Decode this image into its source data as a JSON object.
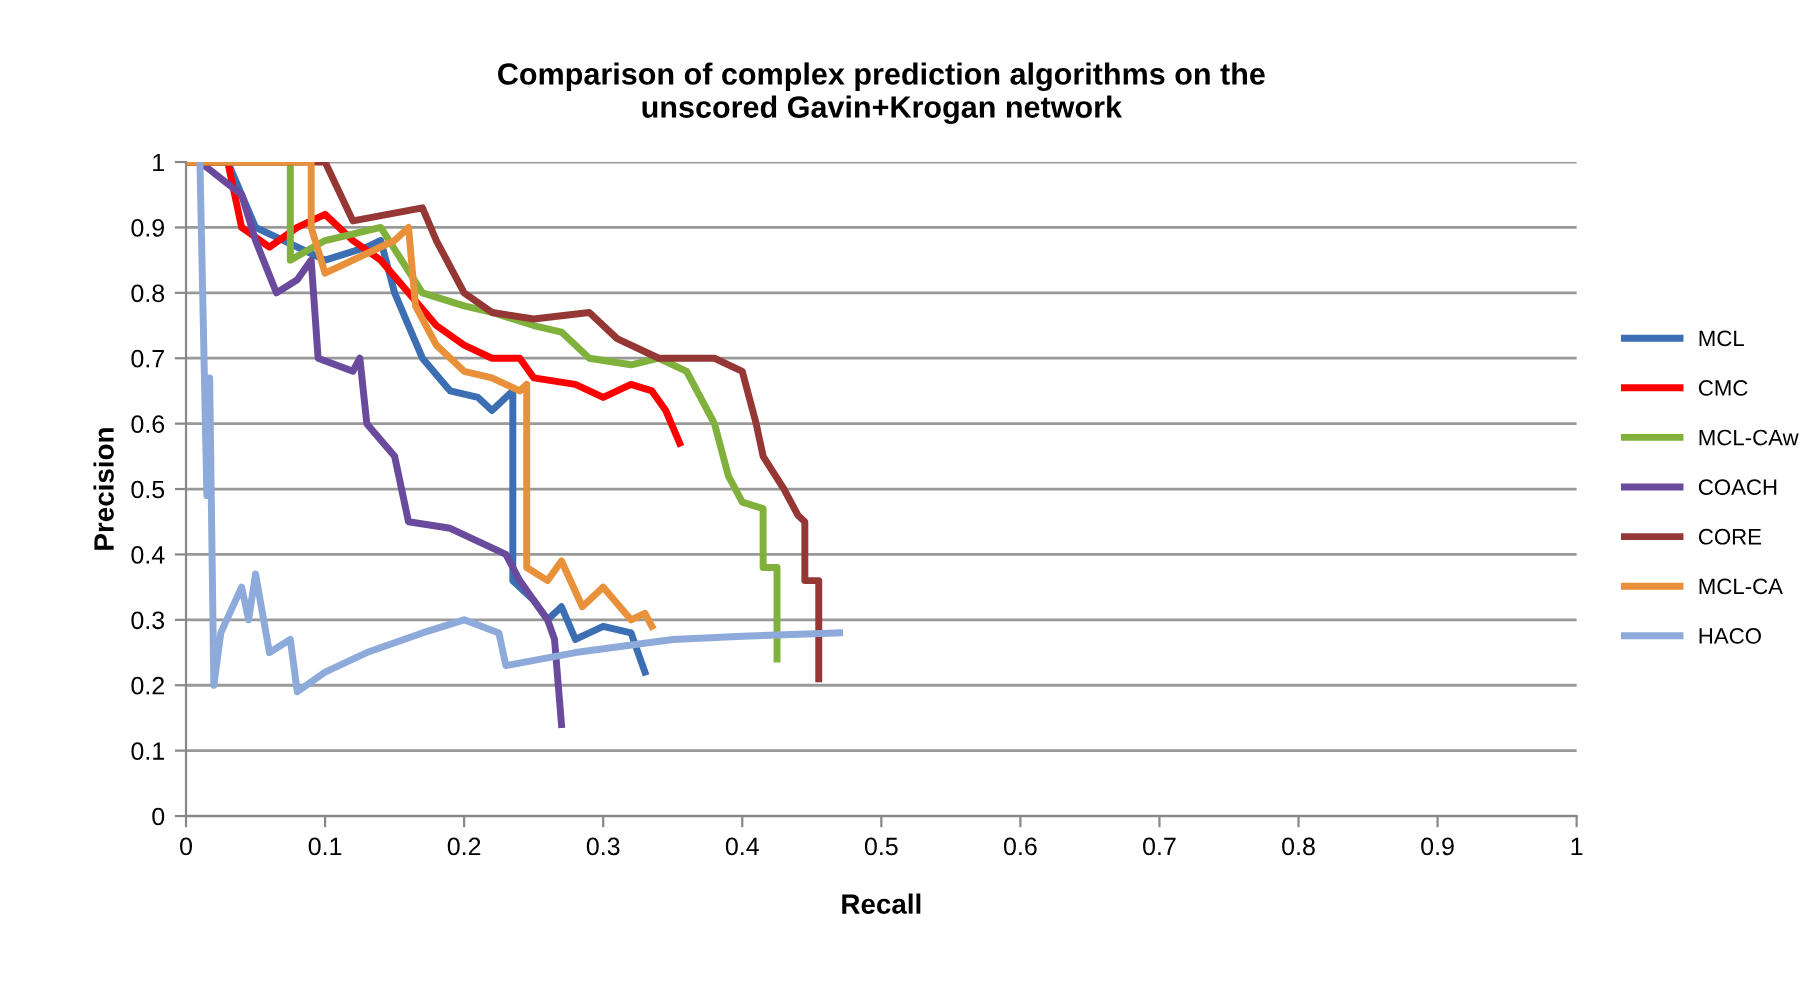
{
  "chart_data": {
    "type": "line",
    "title": "Comparison of complex prediction algorithms on the\nunscored Gavin+Krogan network",
    "xlabel": "Recall",
    "ylabel": "Precision",
    "xlim": [
      0,
      1
    ],
    "ylim": [
      0,
      1
    ],
    "xticks": [
      0,
      0.1,
      0.2,
      0.3,
      0.4,
      0.5,
      0.6,
      0.7,
      0.8,
      0.9,
      1
    ],
    "yticks": [
      0,
      0.1,
      0.2,
      0.3,
      0.4,
      0.5,
      0.6,
      0.7,
      0.8,
      0.9,
      1
    ],
    "grid": "y",
    "legend": "right",
    "marker": "none",
    "line_style": "solid",
    "series": [
      {
        "name": "MCL",
        "color": "#3c6eb4",
        "x": [
          0.03,
          0.05,
          0.1,
          0.13,
          0.14,
          0.15,
          0.16,
          0.17,
          0.19,
          0.21,
          0.22,
          0.235,
          0.235,
          0.25,
          0.26,
          0.27,
          0.28,
          0.3,
          0.32,
          0.325,
          0.33
        ],
        "values": [
          1.0,
          0.9,
          0.85,
          0.87,
          0.88,
          0.8,
          0.75,
          0.7,
          0.65,
          0.64,
          0.62,
          0.65,
          0.36,
          0.33,
          0.3,
          0.32,
          0.27,
          0.29,
          0.28,
          0.25,
          0.22
        ]
      },
      {
        "name": "CMC",
        "color": "#ff0000",
        "x": [
          0.0,
          0.03,
          0.04,
          0.06,
          0.08,
          0.1,
          0.12,
          0.14,
          0.16,
          0.18,
          0.2,
          0.22,
          0.24,
          0.25,
          0.28,
          0.3,
          0.32,
          0.335,
          0.345,
          0.355
        ],
        "values": [
          1.0,
          1.0,
          0.9,
          0.87,
          0.9,
          0.92,
          0.88,
          0.85,
          0.8,
          0.75,
          0.72,
          0.7,
          0.7,
          0.67,
          0.66,
          0.64,
          0.66,
          0.65,
          0.62,
          0.57
        ]
      },
      {
        "name": "MCL-CAw",
        "color": "#7fb13c",
        "x": [
          0.0,
          0.075,
          0.075,
          0.1,
          0.14,
          0.155,
          0.17,
          0.2,
          0.22,
          0.25,
          0.27,
          0.29,
          0.32,
          0.34,
          0.36,
          0.38,
          0.39,
          0.4,
          0.415,
          0.415,
          0.425,
          0.425
        ],
        "values": [
          1.0,
          1.0,
          0.85,
          0.88,
          0.9,
          0.85,
          0.8,
          0.78,
          0.77,
          0.75,
          0.74,
          0.7,
          0.69,
          0.7,
          0.68,
          0.6,
          0.52,
          0.48,
          0.47,
          0.38,
          0.38,
          0.24
        ]
      },
      {
        "name": "COACH",
        "color": "#6a4a9c",
        "x": [
          0.01,
          0.04,
          0.05,
          0.065,
          0.08,
          0.09,
          0.095,
          0.12,
          0.125,
          0.13,
          0.15,
          0.16,
          0.19,
          0.21,
          0.23,
          0.24,
          0.25,
          0.26,
          0.265,
          0.27
        ],
        "values": [
          1.0,
          0.95,
          0.88,
          0.8,
          0.82,
          0.85,
          0.7,
          0.68,
          0.7,
          0.6,
          0.55,
          0.45,
          0.44,
          0.42,
          0.4,
          0.36,
          0.33,
          0.3,
          0.27,
          0.14
        ]
      },
      {
        "name": "CORE",
        "color": "#953735",
        "x": [
          0.0,
          0.1,
          0.12,
          0.17,
          0.18,
          0.2,
          0.22,
          0.25,
          0.29,
          0.31,
          0.34,
          0.38,
          0.4,
          0.41,
          0.415,
          0.43,
          0.44,
          0.445,
          0.445,
          0.455,
          0.455
        ],
        "values": [
          1.0,
          1.0,
          0.91,
          0.93,
          0.88,
          0.8,
          0.77,
          0.76,
          0.77,
          0.73,
          0.7,
          0.7,
          0.68,
          0.6,
          0.55,
          0.5,
          0.46,
          0.45,
          0.36,
          0.36,
          0.21
        ]
      },
      {
        "name": "MCL-CA",
        "color": "#e8913a",
        "x": [
          0.0,
          0.09,
          0.09,
          0.1,
          0.12,
          0.15,
          0.16,
          0.165,
          0.18,
          0.2,
          0.22,
          0.24,
          0.245,
          0.245,
          0.26,
          0.27,
          0.285,
          0.3,
          0.32,
          0.33,
          0.335
        ],
        "values": [
          1.0,
          1.0,
          0.9,
          0.83,
          0.85,
          0.88,
          0.9,
          0.78,
          0.72,
          0.68,
          0.67,
          0.65,
          0.66,
          0.38,
          0.36,
          0.39,
          0.32,
          0.35,
          0.3,
          0.31,
          0.29
        ]
      },
      {
        "name": "HACO",
        "color": "#8eaadb",
        "x": [
          0.01,
          0.015,
          0.017,
          0.02,
          0.025,
          0.04,
          0.045,
          0.05,
          0.06,
          0.075,
          0.08,
          0.1,
          0.13,
          0.17,
          0.2,
          0.225,
          0.23,
          0.28,
          0.35,
          0.4,
          0.47
        ],
        "values": [
          1.0,
          0.49,
          0.67,
          0.2,
          0.28,
          0.35,
          0.3,
          0.37,
          0.25,
          0.27,
          0.19,
          0.22,
          0.25,
          0.28,
          0.3,
          0.28,
          0.23,
          0.25,
          0.27,
          0.275,
          0.28
        ]
      }
    ]
  }
}
